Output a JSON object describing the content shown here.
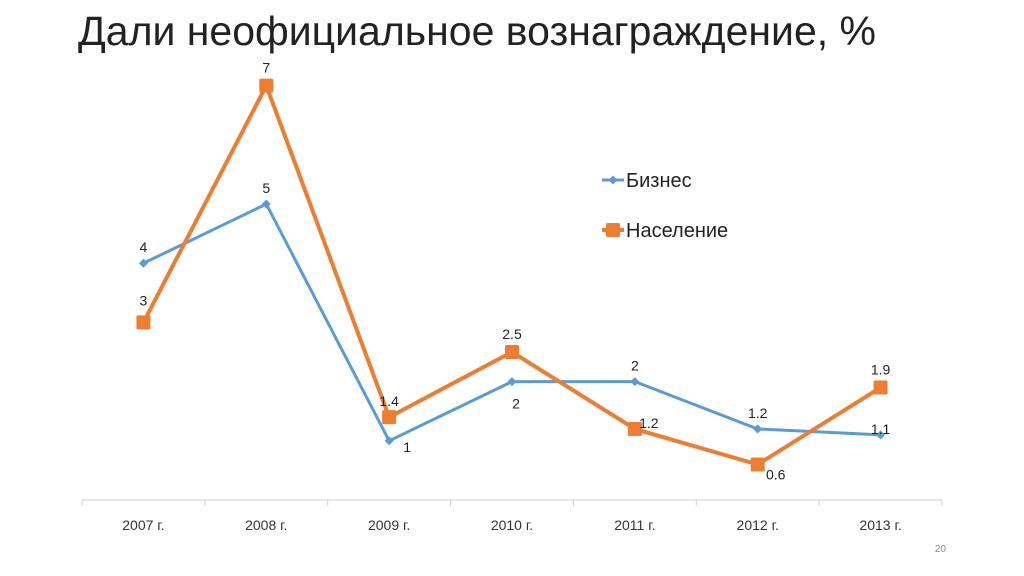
{
  "slide": {
    "title": "Дали неофициальное вознаграждение, %",
    "page_number": "20"
  },
  "chart_data": {
    "type": "line",
    "categories": [
      "2007 г.",
      "2008 г.",
      "2009 г.",
      "2010 г.",
      "2011 г.",
      "2012 г.",
      "2013 г."
    ],
    "series": [
      {
        "name": "Бизнес",
        "values": [
          4,
          5,
          1,
          2,
          2,
          1.2,
          1.1
        ],
        "labels": [
          "4",
          "5",
          "1",
          "2",
          "2",
          "1.2",
          "1.1"
        ],
        "color": "#5B9BD5",
        "marker": "diamond"
      },
      {
        "name": "Население",
        "values": [
          3,
          7,
          1.4,
          2.5,
          1.2,
          0.6,
          1.9
        ],
        "labels": [
          "3",
          "7",
          "1.4",
          "2.5",
          "1.2",
          "0.6",
          "1.9"
        ],
        "color": "#ED7D31",
        "marker": "square"
      }
    ],
    "ylim": [
      0,
      7.4
    ],
    "grid": false,
    "legend_position": "right",
    "xlabel": "",
    "ylabel": ""
  }
}
